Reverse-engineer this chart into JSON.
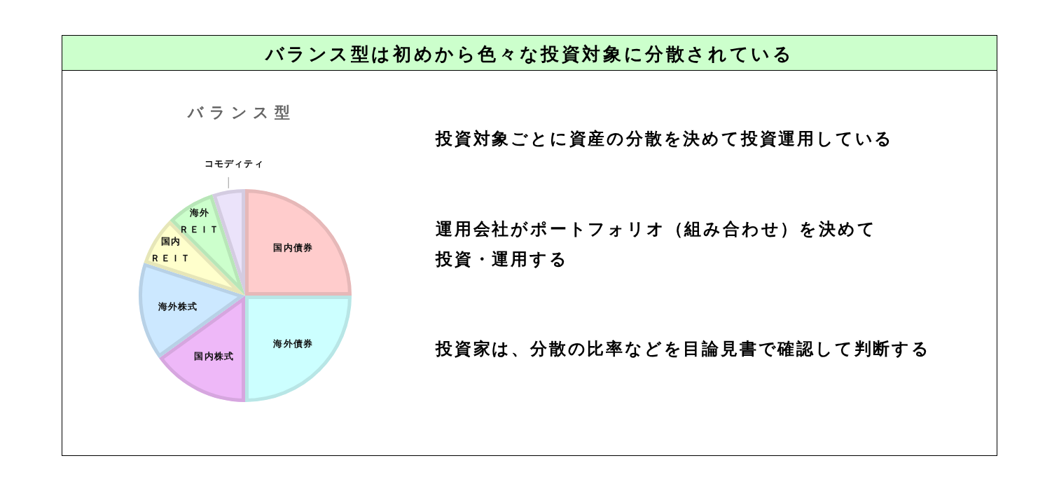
{
  "chart_data": {
    "type": "pie",
    "title": "バランス型は初めから色々な投資対象に分散されている",
    "subtitle": "バランス型",
    "categories": [
      "国内債券",
      "海外債券",
      "国内株式",
      "海外株式",
      "国内ＲＥＩＴ",
      "海外ＲＥＩＴ",
      "コモディティ"
    ],
    "values": [
      25,
      25,
      15,
      15,
      7.5,
      7.5,
      5
    ],
    "colors": [
      "#ffcccc",
      "#ccffff",
      "#eeb8f8",
      "#cce8ff",
      "#ffffcc",
      "#ccffcc",
      "#ebe3fa"
    ],
    "annotations": [
      "投資対象ごとに資産の分散を決めて投資運用している",
      "運用会社がポートフォリオ（組み合わせ）を決めて投資・運用する",
      "投資家は、分散の比率などを目論見書で確認して判断する"
    ]
  }
}
